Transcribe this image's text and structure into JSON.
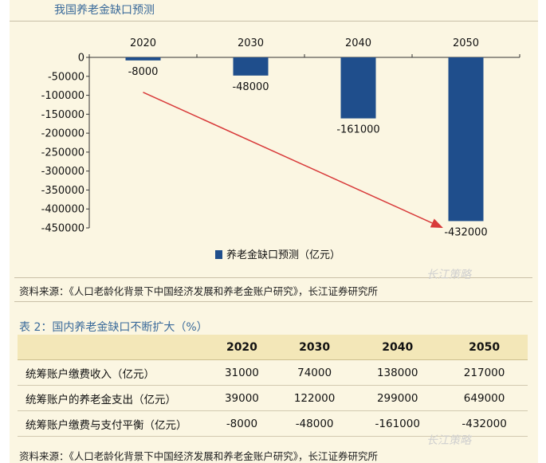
{
  "chart_data": {
    "type": "bar",
    "title": "我国养老金缺口预测",
    "categories": [
      "2020",
      "2030",
      "2040",
      "2050"
    ],
    "series": [
      {
        "name": "养老金缺口预测（亿元）",
        "values": [
          -8000,
          -48000,
          -161000,
          -432000
        ]
      }
    ],
    "data_labels": [
      "-8000",
      "-48000",
      "-161000",
      "-432000"
    ],
    "y_ticks": [
      "0",
      "-50000",
      "-100000",
      "-150000",
      "-200000",
      "-250000",
      "-300000",
      "-350000",
      "-400000",
      "-450000"
    ],
    "ylim": [
      -450000,
      0
    ],
    "bar_color": "#1f4e8c",
    "arrow_color": "#d83a3a",
    "legend_position": "bottom",
    "grid": false
  },
  "source_text": "资料来源：《人口老龄化背景下中国经济发展和养老金账户研究》，长江证券研究所",
  "table": {
    "title": "表 2：国内养老金缺口不断扩大（%）",
    "headers": [
      "",
      "2020",
      "2030",
      "2040",
      "2050"
    ],
    "rows": [
      [
        "统筹账户缴费收入（亿元）",
        "31000",
        "74000",
        "138000",
        "217000"
      ],
      [
        "统筹账户的养老金支出（亿元）",
        "39000",
        "122000",
        "299000",
        "649000"
      ],
      [
        "统筹账户缴费与支付平衡（亿元）",
        "-8000",
        "-48000",
        "-161000",
        "-432000"
      ]
    ]
  },
  "watermark": "长江策略",
  "colors": {
    "background": "#fbf6e2",
    "title": "#3a6a9a",
    "header_row": "#f3e7b8"
  }
}
